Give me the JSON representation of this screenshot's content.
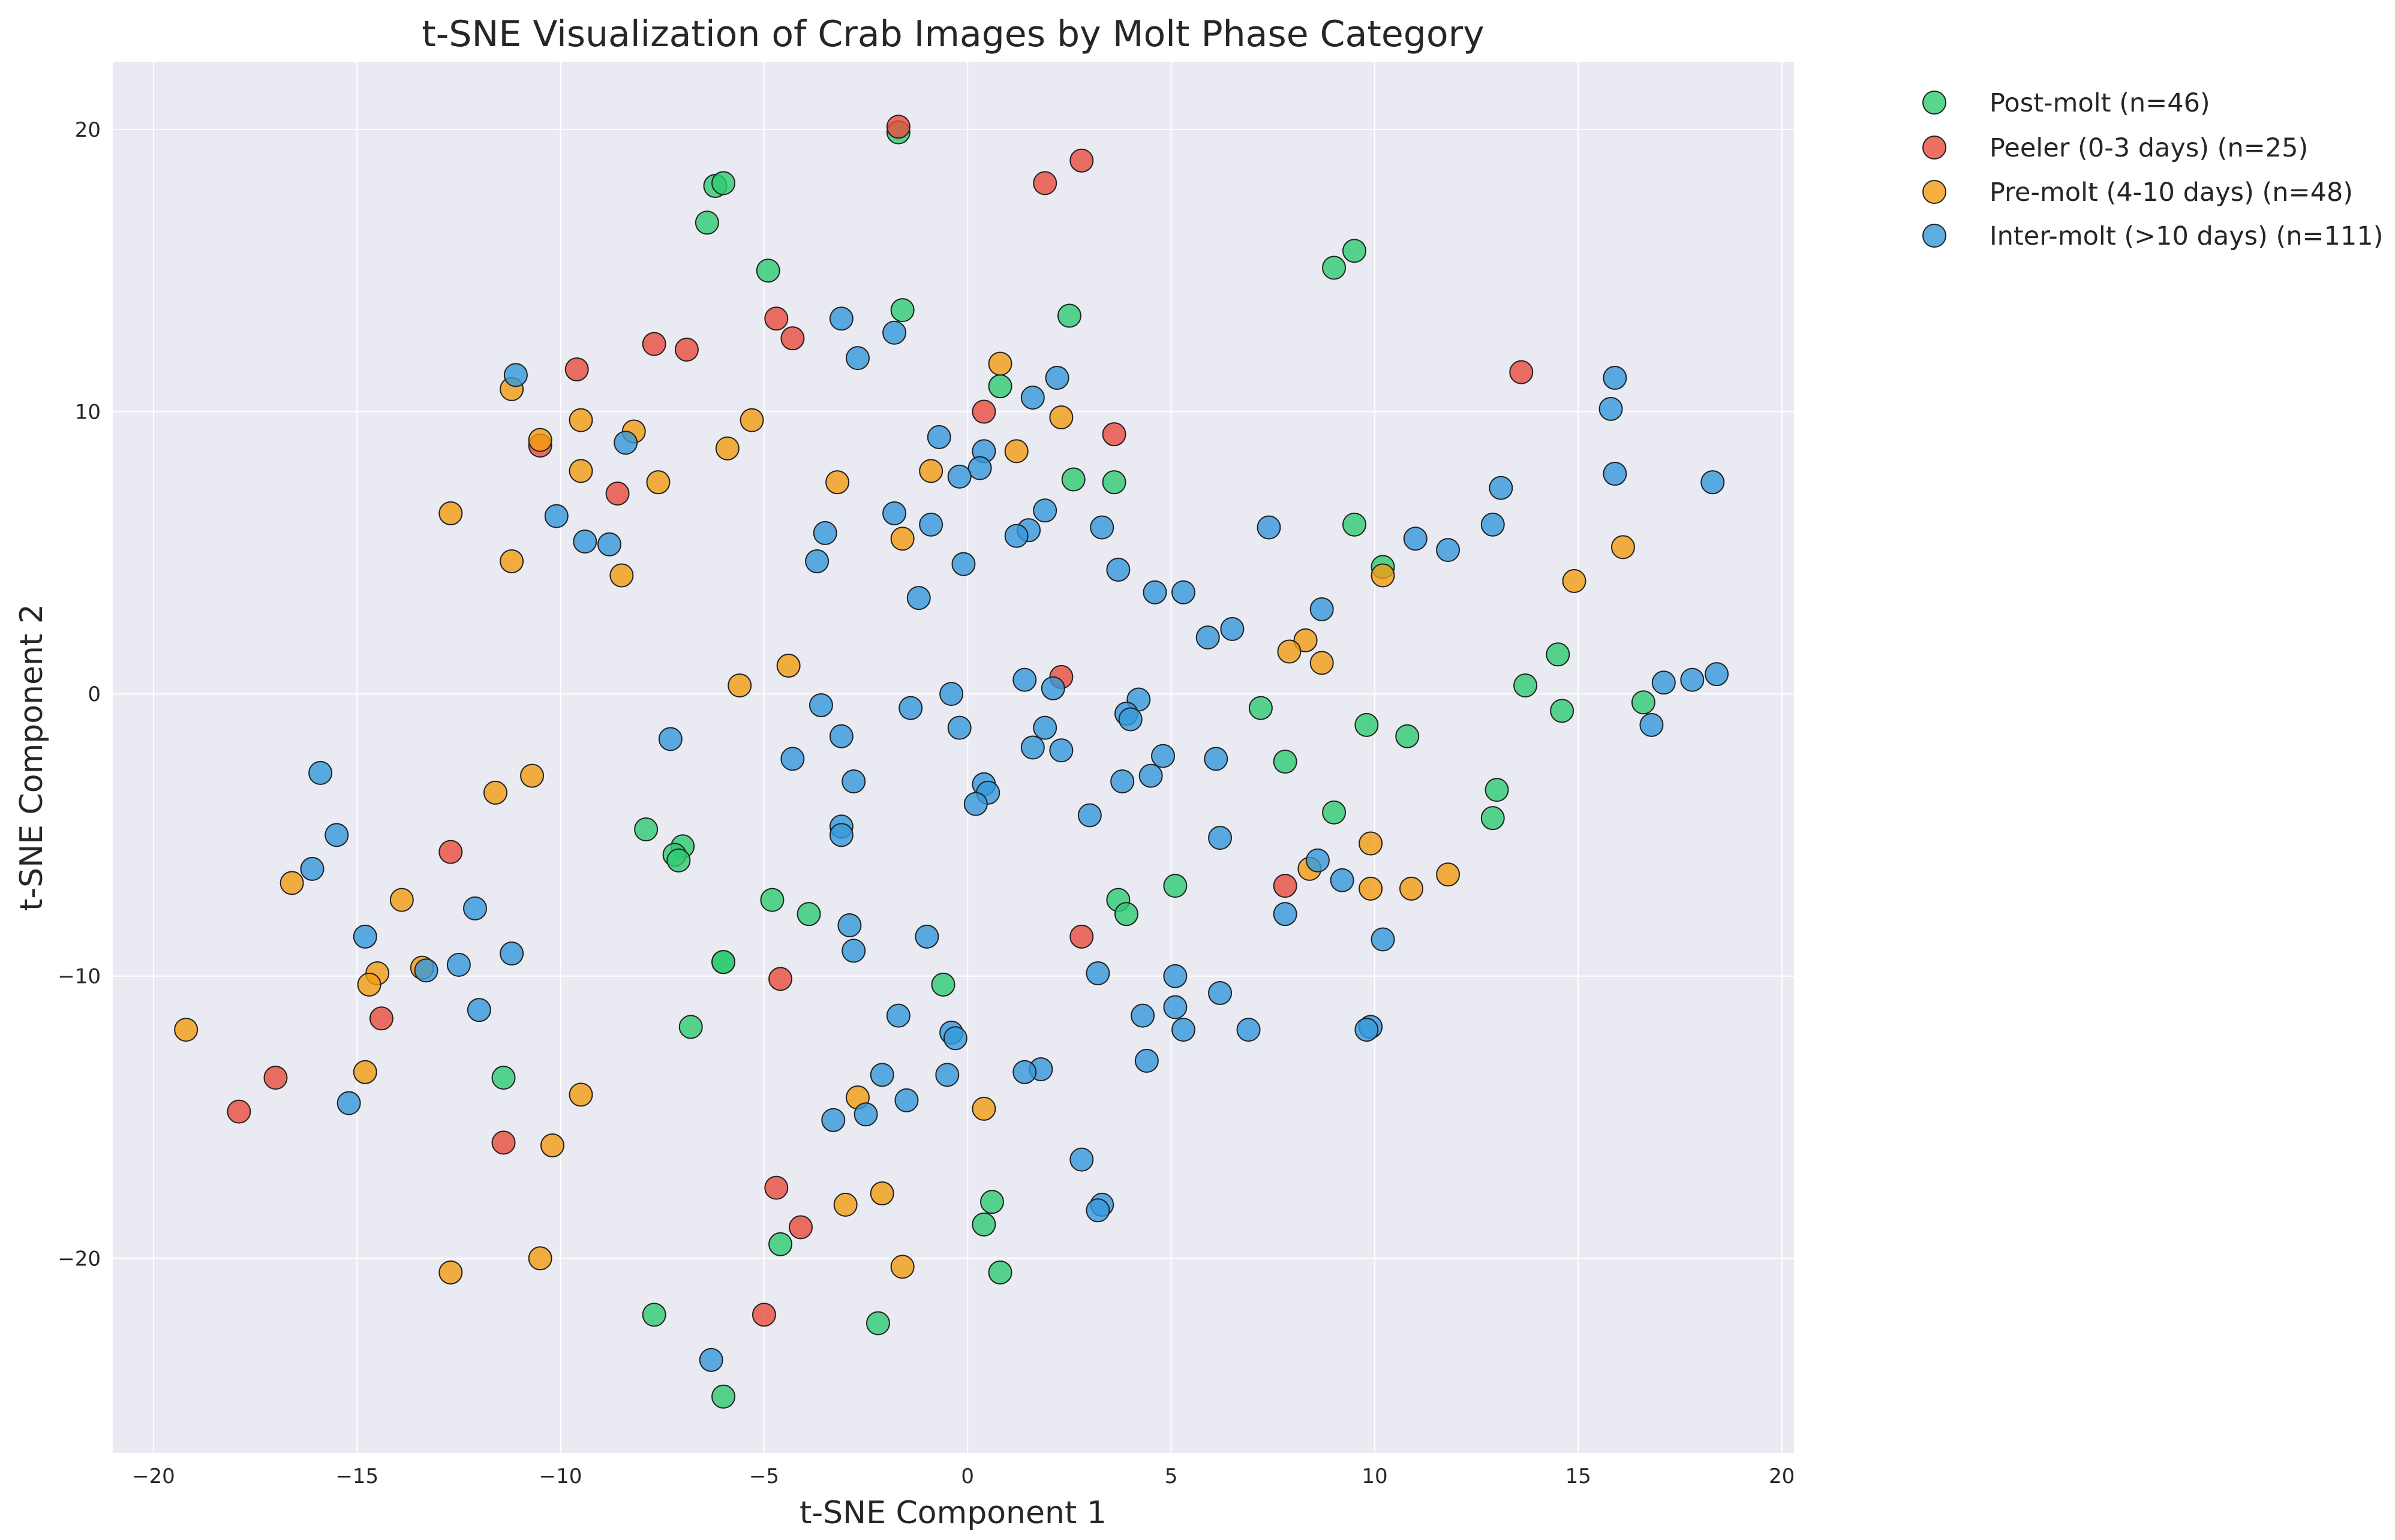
{
  "chart_data": {
    "type": "scatter",
    "title": "t-SNE Visualization of Crab Images by Molt Phase Category",
    "xlabel": "t-SNE Component 1",
    "ylabel": "t-SNE Component 2",
    "xlim": [
      -21,
      20.3
    ],
    "ylim": [
      -26.9,
      22.4
    ],
    "xticks": [
      -20,
      -15,
      -10,
      -5,
      0,
      5,
      10,
      15,
      20
    ],
    "yticks": [
      -20,
      -10,
      0,
      10,
      20
    ],
    "xtick_labels": [
      "−20",
      "−15",
      "−10",
      "−5",
      "0",
      "5",
      "10",
      "15",
      "20"
    ],
    "ytick_labels": [
      "−20",
      "−10",
      "0",
      "10",
      "20"
    ],
    "grid": true,
    "legend_position": "outside-top-right",
    "series": [
      {
        "name": "Post-molt (n=46)",
        "color": "#2ecc71",
        "points": [
          [
            -1.7,
            19.9
          ],
          [
            -6.2,
            18.0
          ],
          [
            -6.0,
            18.1
          ],
          [
            -6.4,
            16.7
          ],
          [
            -4.9,
            15.0
          ],
          [
            -1.6,
            13.6
          ],
          [
            2.5,
            13.4
          ],
          [
            0.8,
            10.9
          ],
          [
            2.6,
            7.6
          ],
          [
            3.6,
            7.5
          ],
          [
            9.0,
            15.1
          ],
          [
            9.5,
            15.7
          ],
          [
            9.5,
            6.0
          ],
          [
            10.2,
            4.5
          ],
          [
            14.5,
            1.4
          ],
          [
            13.7,
            0.3
          ],
          [
            14.6,
            -0.6
          ],
          [
            16.6,
            -0.3
          ],
          [
            7.2,
            -0.5
          ],
          [
            9.8,
            -1.1
          ],
          [
            10.8,
            -1.5
          ],
          [
            7.8,
            -2.4
          ],
          [
            13.0,
            -3.4
          ],
          [
            12.9,
            -4.4
          ],
          [
            9.0,
            -4.2
          ],
          [
            -7.9,
            -4.8
          ],
          [
            -7.0,
            -5.4
          ],
          [
            -7.2,
            -5.7
          ],
          [
            -7.1,
            -5.9
          ],
          [
            -4.8,
            -7.3
          ],
          [
            -3.9,
            -7.8
          ],
          [
            3.7,
            -7.3
          ],
          [
            3.9,
            -7.8
          ],
          [
            5.1,
            -6.8
          ],
          [
            -6.0,
            -9.5
          ],
          [
            -6.0,
            -9.5
          ],
          [
            -0.6,
            -10.3
          ],
          [
            -6.8,
            -11.8
          ],
          [
            -11.4,
            -13.6
          ],
          [
            0.6,
            -18.0
          ],
          [
            0.4,
            -18.8
          ],
          [
            -4.6,
            -19.5
          ],
          [
            0.8,
            -20.5
          ],
          [
            -7.7,
            -22.0
          ],
          [
            -2.2,
            -22.3
          ],
          [
            -6.0,
            -24.9
          ]
        ]
      },
      {
        "name": "Peeler (0-3 days) (n=25)",
        "color": "#e74c3c",
        "points": [
          [
            -1.7,
            20.1
          ],
          [
            2.8,
            18.9
          ],
          [
            1.9,
            18.1
          ],
          [
            -4.7,
            13.3
          ],
          [
            -4.3,
            12.6
          ],
          [
            -7.7,
            12.4
          ],
          [
            -6.9,
            12.2
          ],
          [
            -9.6,
            11.5
          ],
          [
            13.6,
            11.4
          ],
          [
            0.4,
            10.0
          ],
          [
            3.6,
            9.2
          ],
          [
            -10.5,
            8.8
          ],
          [
            -8.6,
            7.1
          ],
          [
            2.3,
            0.6
          ],
          [
            -12.7,
            -5.6
          ],
          [
            7.8,
            -6.8
          ],
          [
            2.8,
            -8.6
          ],
          [
            -4.6,
            -10.1
          ],
          [
            -14.4,
            -11.5
          ],
          [
            -17.0,
            -13.6
          ],
          [
            -17.9,
            -14.8
          ],
          [
            -11.4,
            -15.9
          ],
          [
            -4.7,
            -17.5
          ],
          [
            -4.1,
            -18.9
          ],
          [
            -5.0,
            -22.0
          ]
        ]
      },
      {
        "name": "Pre-molt (4-10 days) (n=48)",
        "color": "#f39c12",
        "points": [
          [
            0.8,
            11.7
          ],
          [
            -11.2,
            10.8
          ],
          [
            2.3,
            9.8
          ],
          [
            -9.5,
            9.7
          ],
          [
            -5.3,
            9.7
          ],
          [
            -8.2,
            9.3
          ],
          [
            -10.5,
            9.0
          ],
          [
            -5.9,
            8.7
          ],
          [
            1.2,
            8.6
          ],
          [
            -9.5,
            7.9
          ],
          [
            -0.9,
            7.9
          ],
          [
            -7.6,
            7.5
          ],
          [
            -3.2,
            7.5
          ],
          [
            -12.7,
            6.4
          ],
          [
            -1.6,
            5.5
          ],
          [
            16.1,
            5.2
          ],
          [
            -11.2,
            4.7
          ],
          [
            -8.5,
            4.2
          ],
          [
            10.2,
            4.2
          ],
          [
            14.9,
            4.0
          ],
          [
            8.3,
            1.9
          ],
          [
            7.9,
            1.5
          ],
          [
            8.7,
            1.1
          ],
          [
            -4.4,
            1.0
          ],
          [
            -5.6,
            0.3
          ],
          [
            -10.7,
            -2.9
          ],
          [
            -11.6,
            -3.5
          ],
          [
            9.9,
            -5.3
          ],
          [
            8.4,
            -6.2
          ],
          [
            -16.6,
            -6.7
          ],
          [
            11.8,
            -6.4
          ],
          [
            9.9,
            -6.9
          ],
          [
            10.9,
            -6.9
          ],
          [
            -13.9,
            -7.3
          ],
          [
            -14.5,
            -9.9
          ],
          [
            -13.4,
            -9.7
          ],
          [
            -14.7,
            -10.3
          ],
          [
            -19.2,
            -11.9
          ],
          [
            -14.8,
            -13.4
          ],
          [
            -9.5,
            -14.2
          ],
          [
            0.4,
            -14.7
          ],
          [
            -2.7,
            -14.3
          ],
          [
            -10.2,
            -16.0
          ],
          [
            -2.1,
            -17.7
          ],
          [
            -3.0,
            -18.1
          ],
          [
            -1.6,
            -20.3
          ],
          [
            -10.5,
            -20.0
          ],
          [
            -12.7,
            -20.5
          ]
        ]
      },
      {
        "name": "Inter-molt (>10 days) (n=111)",
        "color": "#3498db",
        "points": [
          [
            -3.1,
            13.3
          ],
          [
            -1.8,
            12.8
          ],
          [
            -2.7,
            11.9
          ],
          [
            -11.1,
            11.3
          ],
          [
            2.2,
            11.2
          ],
          [
            15.9,
            11.2
          ],
          [
            1.6,
            10.5
          ],
          [
            15.8,
            10.1
          ],
          [
            -0.7,
            9.1
          ],
          [
            0.4,
            8.6
          ],
          [
            -8.4,
            8.9
          ],
          [
            0.3,
            8.0
          ],
          [
            -0.2,
            7.7
          ],
          [
            15.9,
            7.8
          ],
          [
            18.3,
            7.5
          ],
          [
            13.1,
            7.3
          ],
          [
            -1.8,
            6.4
          ],
          [
            1.9,
            6.5
          ],
          [
            -10.1,
            6.3
          ],
          [
            -0.9,
            6.0
          ],
          [
            3.3,
            5.9
          ],
          [
            7.4,
            5.9
          ],
          [
            12.9,
            6.0
          ],
          [
            1.5,
            5.8
          ],
          [
            1.2,
            5.6
          ],
          [
            -3.5,
            5.7
          ],
          [
            -9.4,
            5.4
          ],
          [
            -8.8,
            5.3
          ],
          [
            11.0,
            5.5
          ],
          [
            11.8,
            5.1
          ],
          [
            -3.7,
            4.7
          ],
          [
            -0.1,
            4.6
          ],
          [
            3.7,
            4.4
          ],
          [
            4.6,
            3.6
          ],
          [
            5.3,
            3.6
          ],
          [
            -1.2,
            3.4
          ],
          [
            8.7,
            3.0
          ],
          [
            6.5,
            2.3
          ],
          [
            5.9,
            2.0
          ],
          [
            1.4,
            0.5
          ],
          [
            2.1,
            0.2
          ],
          [
            -0.4,
            0.0
          ],
          [
            4.2,
            -0.2
          ],
          [
            -1.4,
            -0.5
          ],
          [
            3.9,
            -0.7
          ],
          [
            4.0,
            -0.9
          ],
          [
            16.8,
            -1.1
          ],
          [
            17.1,
            0.4
          ],
          [
            17.8,
            0.5
          ],
          [
            18.4,
            0.7
          ],
          [
            -3.6,
            -0.4
          ],
          [
            -0.2,
            -1.2
          ],
          [
            1.9,
            -1.2
          ],
          [
            -7.3,
            -1.6
          ],
          [
            -3.1,
            -1.5
          ],
          [
            1.6,
            -1.9
          ],
          [
            2.3,
            -2.0
          ],
          [
            -4.3,
            -2.3
          ],
          [
            4.8,
            -2.2
          ],
          [
            6.1,
            -2.3
          ],
          [
            -2.8,
            -3.1
          ],
          [
            3.8,
            -3.1
          ],
          [
            4.5,
            -2.9
          ],
          [
            0.4,
            -3.2
          ],
          [
            0.5,
            -3.5
          ],
          [
            0.2,
            -3.9
          ],
          [
            3.0,
            -4.3
          ],
          [
            -3.1,
            -4.7
          ],
          [
            -3.1,
            -5.0
          ],
          [
            6.2,
            -5.1
          ],
          [
            -15.5,
            -5.0
          ],
          [
            -15.9,
            -2.8
          ],
          [
            -16.1,
            -6.2
          ],
          [
            8.6,
            -5.9
          ],
          [
            9.2,
            -6.6
          ],
          [
            -12.1,
            -7.6
          ],
          [
            7.8,
            -7.8
          ],
          [
            -2.9,
            -8.2
          ],
          [
            -14.8,
            -8.6
          ],
          [
            -1.0,
            -8.6
          ],
          [
            10.2,
            -8.7
          ],
          [
            -2.8,
            -9.1
          ],
          [
            -11.2,
            -9.2
          ],
          [
            -12.5,
            -9.6
          ],
          [
            -13.3,
            -9.8
          ],
          [
            3.2,
            -9.9
          ],
          [
            5.1,
            -10.0
          ],
          [
            6.2,
            -10.6
          ],
          [
            -12.0,
            -11.2
          ],
          [
            5.1,
            -11.1
          ],
          [
            -1.7,
            -11.4
          ],
          [
            4.3,
            -11.4
          ],
          [
            -0.4,
            -12.0
          ],
          [
            -0.3,
            -12.2
          ],
          [
            5.3,
            -11.9
          ],
          [
            6.9,
            -11.9
          ],
          [
            9.9,
            -11.8
          ],
          [
            9.8,
            -11.9
          ],
          [
            1.8,
            -13.3
          ],
          [
            1.4,
            -13.4
          ],
          [
            -2.1,
            -13.5
          ],
          [
            -0.5,
            -13.5
          ],
          [
            4.4,
            -13.0
          ],
          [
            -15.2,
            -14.5
          ],
          [
            -1.5,
            -14.4
          ],
          [
            -3.3,
            -15.1
          ],
          [
            -2.5,
            -14.9
          ],
          [
            2.8,
            -16.5
          ],
          [
            3.3,
            -18.1
          ],
          [
            3.2,
            -18.3
          ],
          [
            -6.3,
            -23.6
          ]
        ]
      }
    ]
  }
}
